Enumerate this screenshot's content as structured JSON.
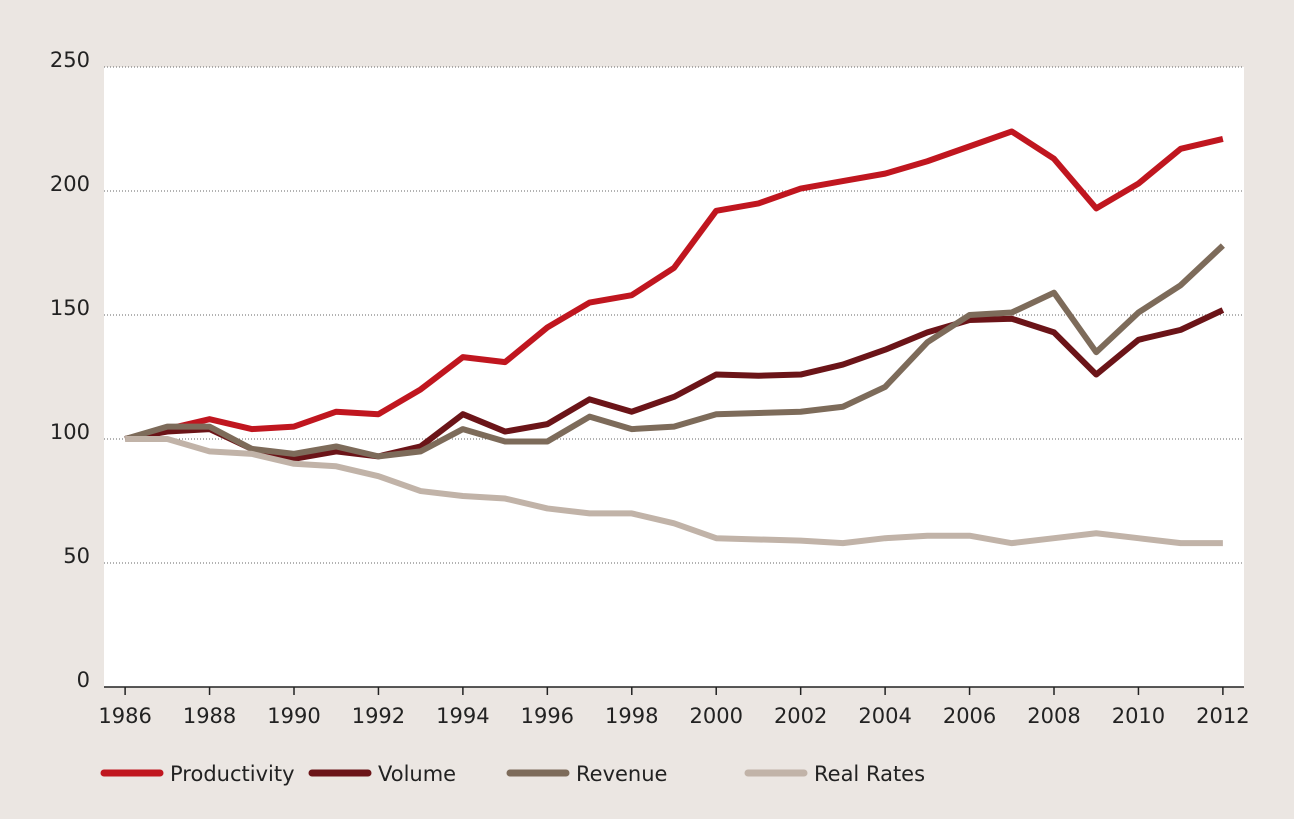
{
  "chart_data": {
    "type": "line",
    "x": [
      1986,
      1987,
      1988,
      1989,
      1990,
      1991,
      1992,
      1993,
      1994,
      1995,
      1996,
      1997,
      1998,
      1999,
      2000,
      2001,
      2002,
      2003,
      2004,
      2005,
      2006,
      2007,
      2008,
      2009,
      2010,
      2011,
      2012
    ],
    "series": [
      {
        "name": "Productivity",
        "color": "#c0161f",
        "values": [
          100,
          104,
          108,
          104,
          105,
          111,
          110,
          120,
          133,
          131,
          145,
          155,
          158,
          169,
          192,
          195,
          201,
          204,
          207,
          212,
          218,
          224,
          213,
          193,
          203,
          217,
          221
        ]
      },
      {
        "name": "Volume",
        "color": "#6b1418",
        "values": [
          100,
          103,
          104,
          96,
          92,
          95,
          93,
          97,
          110,
          103,
          106,
          116,
          111,
          117,
          126,
          125.5,
          126,
          130,
          136,
          143,
          148,
          148.5,
          143,
          126,
          140,
          144,
          152
        ]
      },
      {
        "name": "Revenue",
        "color": "#7d6b5a",
        "values": [
          100,
          105,
          105,
          96,
          94,
          97,
          93,
          95,
          104,
          99,
          99,
          109,
          104,
          105,
          110,
          110.5,
          111,
          113,
          121,
          139,
          150,
          151,
          159,
          135,
          151,
          162,
          178
        ]
      },
      {
        "name": "Real Rates",
        "color": "#c1b3a8",
        "values": [
          100,
          100,
          95,
          94,
          90,
          89,
          85,
          79,
          77,
          76,
          72,
          70,
          70,
          66,
          60,
          59.5,
          59,
          58,
          60,
          61,
          61,
          58,
          60,
          62,
          60,
          58,
          58
        ]
      }
    ],
    "xlim": [
      1985.5,
      2012.5
    ],
    "xticks": [
      1986,
      1988,
      1990,
      1992,
      1994,
      1996,
      1998,
      2000,
      2002,
      2004,
      2006,
      2008,
      2010,
      2012
    ],
    "ylim": [
      0,
      250
    ],
    "yticks": [
      0,
      50,
      100,
      150,
      200,
      250
    ],
    "grid": true
  }
}
